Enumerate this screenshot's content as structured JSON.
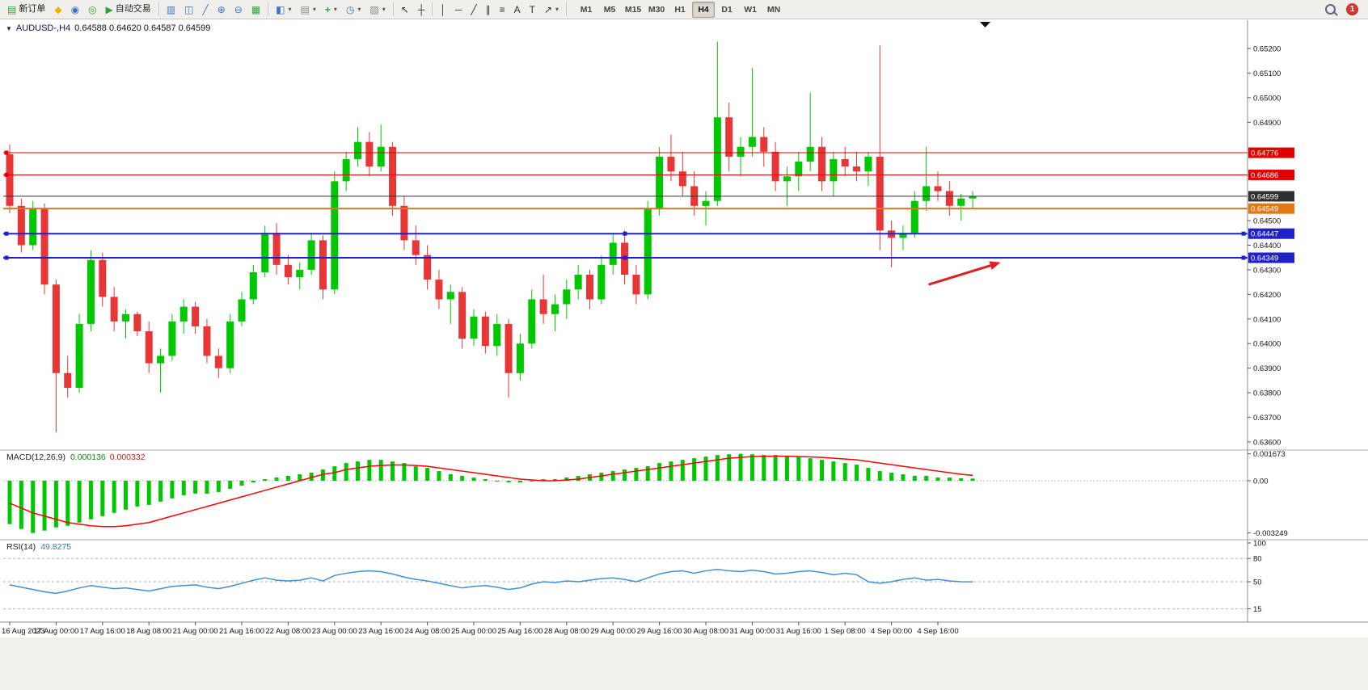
{
  "toolbar": {
    "new_order_label": "新订单",
    "auto_trading_label": "自动交易",
    "timeframes": [
      "M1",
      "M5",
      "M15",
      "M30",
      "H1",
      "H4",
      "D1",
      "W1",
      "MN"
    ],
    "active_timeframe": "H4",
    "notification_count": "1"
  },
  "icons": {
    "chart_menu": "▼",
    "new_order": "▤",
    "metaeditor": "◆",
    "market_watch": "◉",
    "navigator": "◎",
    "auto_trading": "▶",
    "bar_chart": "▥",
    "candlestick_chart": "◫",
    "line_chart": "╱",
    "zoom_in": "⊕",
    "zoom_out": "⊖",
    "tile_windows": "▦",
    "new_chart": "◧",
    "profiles": "▤",
    "indicators": "+",
    "periods": "◷",
    "templates": "▨",
    "cursor": "↖",
    "crosshair": "┼",
    "vertical_line": "│",
    "horizontal_line": "─",
    "trendline": "╱",
    "channel": "∥",
    "fibonacci": "≡",
    "text": "A",
    "text_label": "T",
    "arrows": "↗",
    "dropdown": "▾"
  },
  "chart": {
    "title": {
      "symbol_period": "AUDUSD-,H4",
      "ohlc": "0.64588 0.64620 0.64587 0.64599"
    }
  },
  "indicators": {
    "macd": {
      "title": "MACD(12,26,9)",
      "value1": "0.000136",
      "value2": "0.000332"
    },
    "rsi": {
      "title": "RSI(14)",
      "value": "49.8275"
    }
  },
  "colors": {
    "candle_up": "#00C800",
    "candle_down": "#E83535",
    "macd_histogram": "#00C800",
    "macd_signal": "#FF0000",
    "rsi_line": "#4090D8",
    "hline_red": "#E00000",
    "hline_orange": "#E07818",
    "hline_blue": "#2020C8",
    "current_price_line": "#303030",
    "arrow": "#DD2020",
    "axis_text": "#111111",
    "panel_separator": "#A8A8A8"
  },
  "chart_data": [
    {
      "type": "candlestick",
      "title": "AUDUSD-,H4",
      "x_label_step": 4,
      "x_labels": [
        "16 Aug 2023",
        "17 Aug 00:00",
        "17 Aug 16:00",
        "18 Aug 08:00",
        "21 Aug 00:00",
        "21 Aug 16:00",
        "22 Aug 08:00",
        "23 Aug 00:00",
        "23 Aug 16:00",
        "24 Aug 08:00",
        "25 Aug 00:00",
        "25 Aug 16:00",
        "28 Aug 08:00",
        "29 Aug 00:00",
        "29 Aug 16:00",
        "30 Aug 08:00",
        "31 Aug 00:00",
        "31 Aug 16:00",
        "1 Sep 08:00",
        "4 Sep 00:00",
        "4 Sep 16:00"
      ],
      "ylim": [
        0.6357,
        0.6531
      ],
      "y_ticks": [
        "0.65200",
        "0.65100",
        "0.65000",
        "0.64900",
        "0.64500",
        "0.64400",
        "0.64300",
        "0.64200",
        "0.64100",
        "0.64000",
        "0.63900",
        "0.63800",
        "0.63700",
        "0.63600"
      ],
      "hlines": [
        {
          "price": 0.64776,
          "label": "0.64776",
          "color": "#E00000",
          "width": 1,
          "handles": "left"
        },
        {
          "price": 0.64686,
          "label": "0.64686",
          "color": "#E00000",
          "width": 1,
          "handles": "left"
        },
        {
          "price": 0.64599,
          "label": "0.64599",
          "color": "#303030",
          "width": 1,
          "handles": "none",
          "current": true
        },
        {
          "price": 0.64549,
          "label": "0.64549",
          "color": "#E07818",
          "width": 2,
          "handles": "none"
        },
        {
          "price": 0.64447,
          "label": "0.64447",
          "color": "#2020C8",
          "width": 2,
          "handles": "all"
        },
        {
          "price": 0.64349,
          "label": "0.64349",
          "color": "#2020C8",
          "width": 2,
          "handles": "all"
        }
      ],
      "arrow": {
        "from_index": 79.2,
        "from_price": 0.6424,
        "to_index": 85.4,
        "to_price": 0.6433
      },
      "candles": [
        [
          0.6477,
          0.6481,
          0.6453,
          0.6456
        ],
        [
          0.6456,
          0.6459,
          0.6437,
          0.644
        ],
        [
          0.644,
          0.6458,
          0.6438,
          0.6455
        ],
        [
          0.6455,
          0.6457,
          0.642,
          0.6424
        ],
        [
          0.6424,
          0.6426,
          0.6364,
          0.6388
        ],
        [
          0.6388,
          0.6395,
          0.6378,
          0.6382
        ],
        [
          0.6382,
          0.6412,
          0.638,
          0.6408
        ],
        [
          0.6408,
          0.6438,
          0.6405,
          0.6434
        ],
        [
          0.6434,
          0.6437,
          0.6415,
          0.6419
        ],
        [
          0.6419,
          0.6423,
          0.6405,
          0.6409
        ],
        [
          0.6409,
          0.6414,
          0.6402,
          0.6412
        ],
        [
          0.6412,
          0.6413,
          0.6403,
          0.6405
        ],
        [
          0.6405,
          0.6409,
          0.6388,
          0.6392
        ],
        [
          0.6392,
          0.6398,
          0.638,
          0.6395
        ],
        [
          0.6395,
          0.6412,
          0.6393,
          0.6409
        ],
        [
          0.6409,
          0.6418,
          0.6404,
          0.6415
        ],
        [
          0.6415,
          0.6417,
          0.6404,
          0.6407
        ],
        [
          0.6407,
          0.641,
          0.6392,
          0.6395
        ],
        [
          0.6395,
          0.6398,
          0.6386,
          0.639
        ],
        [
          0.639,
          0.6412,
          0.6388,
          0.6409
        ],
        [
          0.6409,
          0.6421,
          0.6407,
          0.6418
        ],
        [
          0.6418,
          0.6432,
          0.6416,
          0.6429
        ],
        [
          0.6429,
          0.6448,
          0.6427,
          0.6445
        ],
        [
          0.6445,
          0.6449,
          0.6428,
          0.6432
        ],
        [
          0.6432,
          0.6436,
          0.6424,
          0.6427
        ],
        [
          0.6427,
          0.6433,
          0.6422,
          0.643
        ],
        [
          0.643,
          0.6445,
          0.6428,
          0.6442
        ],
        [
          0.6442,
          0.6444,
          0.6418,
          0.6422
        ],
        [
          0.6422,
          0.647,
          0.642,
          0.6466
        ],
        [
          0.6466,
          0.6478,
          0.6462,
          0.6475
        ],
        [
          0.6475,
          0.6488,
          0.6472,
          0.6482
        ],
        [
          0.6482,
          0.6486,
          0.6468,
          0.6472
        ],
        [
          0.6472,
          0.6489,
          0.647,
          0.648
        ],
        [
          0.648,
          0.6482,
          0.6452,
          0.6456
        ],
        [
          0.6456,
          0.646,
          0.6438,
          0.6442
        ],
        [
          0.6442,
          0.6448,
          0.6432,
          0.6436
        ],
        [
          0.6436,
          0.644,
          0.6422,
          0.6426
        ],
        [
          0.6426,
          0.643,
          0.6414,
          0.6418
        ],
        [
          0.6418,
          0.6424,
          0.6408,
          0.6421
        ],
        [
          0.6421,
          0.6423,
          0.6398,
          0.6402
        ],
        [
          0.6402,
          0.6414,
          0.6399,
          0.6411
        ],
        [
          0.6411,
          0.6413,
          0.6396,
          0.6399
        ],
        [
          0.6399,
          0.6412,
          0.6395,
          0.6408
        ],
        [
          0.6408,
          0.641,
          0.6378,
          0.6388
        ],
        [
          0.6388,
          0.6404,
          0.6385,
          0.64
        ],
        [
          0.64,
          0.6422,
          0.6398,
          0.6418
        ],
        [
          0.6418,
          0.6428,
          0.6408,
          0.6412
        ],
        [
          0.6412,
          0.642,
          0.6405,
          0.6416
        ],
        [
          0.6416,
          0.6426,
          0.641,
          0.6422
        ],
        [
          0.6422,
          0.6432,
          0.6418,
          0.6428
        ],
        [
          0.6428,
          0.643,
          0.6414,
          0.6418
        ],
        [
          0.6418,
          0.6436,
          0.6416,
          0.6432
        ],
        [
          0.6432,
          0.6445,
          0.6428,
          0.6441
        ],
        [
          0.6441,
          0.6446,
          0.6424,
          0.6428
        ],
        [
          0.6428,
          0.6432,
          0.6416,
          0.642
        ],
        [
          0.642,
          0.6458,
          0.6418,
          0.6455
        ],
        [
          0.6455,
          0.648,
          0.6452,
          0.6476
        ],
        [
          0.6476,
          0.6485,
          0.6466,
          0.647
        ],
        [
          0.647,
          0.6478,
          0.646,
          0.6464
        ],
        [
          0.6464,
          0.647,
          0.6452,
          0.6456
        ],
        [
          0.6456,
          0.6462,
          0.6448,
          0.6458
        ],
        [
          0.6458,
          0.65228,
          0.6456,
          0.6492
        ],
        [
          0.6492,
          0.6498,
          0.647,
          0.6476
        ],
        [
          0.6476,
          0.6484,
          0.6468,
          0.648
        ],
        [
          0.648,
          0.6512,
          0.6476,
          0.6484
        ],
        [
          0.6484,
          0.6488,
          0.6472,
          0.6478
        ],
        [
          0.6478,
          0.6482,
          0.6462,
          0.6466
        ],
        [
          0.6466,
          0.6472,
          0.6456,
          0.6468
        ],
        [
          0.6468,
          0.6478,
          0.6462,
          0.6474
        ],
        [
          0.6474,
          0.6502,
          0.647,
          0.648
        ],
        [
          0.648,
          0.6484,
          0.6462,
          0.6466
        ],
        [
          0.6466,
          0.6478,
          0.646,
          0.6475
        ],
        [
          0.6475,
          0.648,
          0.6468,
          0.6472
        ],
        [
          0.6472,
          0.6478,
          0.6466,
          0.647
        ],
        [
          0.647,
          0.6478,
          0.6464,
          0.6476
        ],
        [
          0.6476,
          0.65212,
          0.6438,
          0.6446
        ],
        [
          0.6446,
          0.645,
          0.6431,
          0.6443
        ],
        [
          0.6443,
          0.6448,
          0.6438,
          0.6445
        ],
        [
          0.6445,
          0.6462,
          0.6443,
          0.6458
        ],
        [
          0.6458,
          0.648,
          0.6454,
          0.6464
        ],
        [
          0.6464,
          0.647,
          0.6458,
          0.6462
        ],
        [
          0.6462,
          0.6466,
          0.6452,
          0.6456
        ],
        [
          0.6456,
          0.6461,
          0.645,
          0.6459
        ],
        [
          0.6459,
          0.6462,
          0.6455,
          0.64599
        ]
      ]
    },
    {
      "type": "macd",
      "title": "MACD(12,26,9)",
      "current_values": [
        0.000136,
        0.000332
      ],
      "ylim": [
        -0.003249,
        0.001673
      ],
      "y_ticks": [
        "0.001673",
        "0.00",
        "-0.003249"
      ],
      "histogram": [
        -0.0027,
        -0.003,
        -0.003249,
        -0.0031,
        -0.0029,
        -0.0028,
        -0.0026,
        -0.0024,
        -0.0022,
        -0.002,
        -0.0018,
        -0.0016,
        -0.0015,
        -0.0013,
        -0.0011,
        -0.0009,
        -0.0008,
        -0.0008,
        -0.0007,
        -0.0005,
        -0.0003,
        -0.0001,
        0.0001,
        0.0002,
        0.0003,
        0.0004,
        0.0005,
        0.0007,
        0.0009,
        0.0011,
        0.0012,
        0.0013,
        0.0013,
        0.0012,
        0.0011,
        0.0009,
        0.0008,
        0.0006,
        0.0004,
        0.0003,
        0.0002,
        0.0001,
        0.0,
        -0.0001,
        -0.0001,
        0.0,
        0.0001,
        0.0001,
        0.0002,
        0.0003,
        0.0004,
        0.0005,
        0.0006,
        0.0007,
        0.0008,
        0.0009,
        0.0011,
        0.0012,
        0.0013,
        0.0014,
        0.0015,
        0.0016,
        0.00165,
        0.001673,
        0.00165,
        0.0016,
        0.0016,
        0.0015,
        0.0015,
        0.0014,
        0.0013,
        0.0012,
        0.0011,
        0.001,
        0.0008,
        0.0006,
        0.0005,
        0.0004,
        0.0003,
        0.0003,
        0.0002,
        0.0002,
        0.00015,
        0.000136
      ],
      "signal": [
        -0.0014,
        -0.0017,
        -0.002,
        -0.0022,
        -0.0024,
        -0.0026,
        -0.0027,
        -0.0028,
        -0.00285,
        -0.00285,
        -0.0028,
        -0.0027,
        -0.0026,
        -0.0024,
        -0.0022,
        -0.002,
        -0.0018,
        -0.0016,
        -0.0014,
        -0.0012,
        -0.001,
        -0.0008,
        -0.0006,
        -0.0004,
        -0.0002,
        0.0,
        0.0002,
        0.0004,
        0.0005,
        0.0007,
        0.0008,
        0.0009,
        0.00095,
        0.00098,
        0.00098,
        0.00095,
        0.0009,
        0.0008,
        0.0007,
        0.0006,
        0.0005,
        0.0004,
        0.0003,
        0.0002,
        0.0001,
        5e-05,
        0.0,
        0.0,
        5e-05,
        0.0001,
        0.0002,
        0.0003,
        0.0004,
        0.0005,
        0.0006,
        0.0007,
        0.0008,
        0.0009,
        0.001,
        0.0011,
        0.0012,
        0.0013,
        0.0014,
        0.00145,
        0.0015,
        0.00152,
        0.00153,
        0.00152,
        0.0015,
        0.00148,
        0.00145,
        0.0014,
        0.00135,
        0.0013,
        0.0012,
        0.0011,
        0.001,
        0.0009,
        0.0008,
        0.0007,
        0.0006,
        0.0005,
        0.0004,
        0.000332
      ]
    },
    {
      "type": "rsi",
      "title": "RSI(14)",
      "current_value": 49.8275,
      "ylim": [
        0,
        100
      ],
      "y_ticks": [
        "100",
        "80",
        "50",
        "15"
      ],
      "levels": [
        80,
        50,
        15
      ],
      "values": [
        46,
        43,
        40,
        37,
        35,
        38,
        42,
        45,
        43,
        41,
        42,
        40,
        38,
        41,
        44,
        45,
        46,
        43,
        41,
        44,
        48,
        52,
        55,
        52,
        51,
        52,
        55,
        51,
        58,
        61,
        63,
        64,
        63,
        60,
        56,
        53,
        51,
        48,
        45,
        42,
        44,
        45,
        43,
        40,
        42,
        47,
        50,
        49,
        51,
        50,
        52,
        54,
        55,
        53,
        50,
        55,
        60,
        63,
        64,
        61,
        64,
        66,
        64,
        63,
        65,
        63,
        60,
        61,
        63,
        64,
        62,
        59,
        61,
        59,
        50,
        48,
        50,
        53,
        55,
        52,
        53,
        51,
        50,
        49.83
      ]
    }
  ]
}
